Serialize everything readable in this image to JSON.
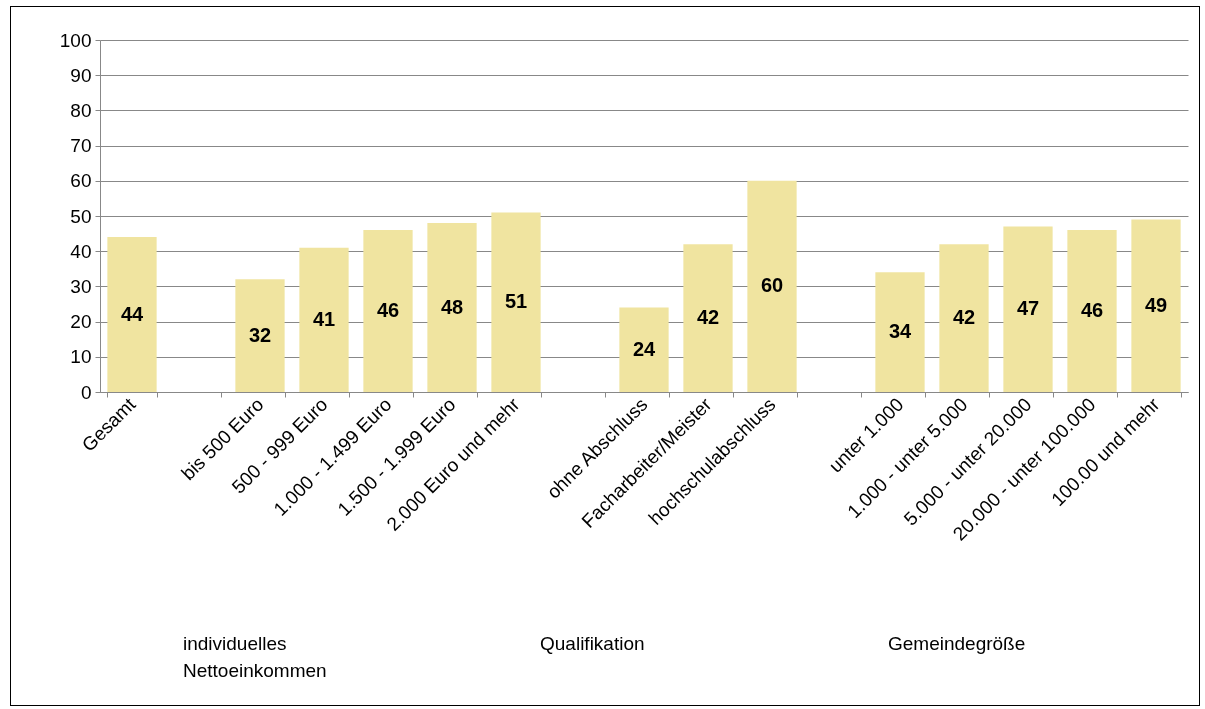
{
  "chart_data": {
    "type": "bar",
    "categories": [
      "Gesamt",
      null,
      "bis 500 Euro",
      "500 - 999 Euro",
      "1.000 - 1.499 Euro",
      "1.500 - 1.999 Euro",
      "2.000 Euro und mehr",
      null,
      "ohne Abschluss",
      "Facharbeiter/Meister",
      "hochschulabschluss",
      null,
      "unter 1.000",
      "1.000 - unter 5.000",
      "5.000 - unter 20.000",
      "20.000 - unter 100.000",
      "100.00 und mehr"
    ],
    "values": [
      44,
      null,
      32,
      41,
      46,
      48,
      51,
      null,
      24,
      42,
      60,
      null,
      34,
      42,
      47,
      46,
      49
    ],
    "color": "#f0e4a0",
    "ylim": [
      0,
      100
    ],
    "yticks": [
      0,
      10,
      20,
      30,
      40,
      50,
      60,
      70,
      80,
      90,
      100
    ],
    "grid": "y",
    "data_labels": true,
    "annotations": [
      "individuelles Nettoeinkommen",
      "Qualifikation",
      "Gemeindegröße"
    ]
  }
}
